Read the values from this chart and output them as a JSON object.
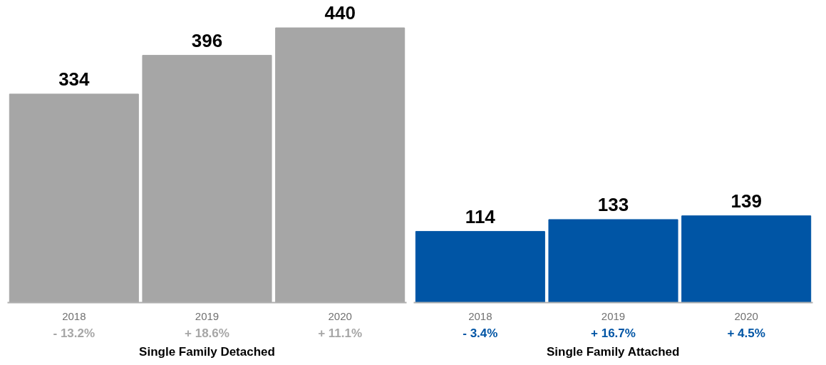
{
  "chart_data": [
    {
      "type": "bar",
      "xlabel": "Single Family Detached",
      "categories": [
        "2018",
        "2019",
        "2020"
      ],
      "values": [
        334,
        396,
        440
      ],
      "color": "#a6a6a6",
      "data_labels": true,
      "tick_labels": "x",
      "grid": false,
      "annotations": [
        "- 13.2%",
        "+ 18.6%",
        "+ 11.1%"
      ]
    },
    {
      "type": "bar",
      "xlabel": "Single Family Attached",
      "categories": [
        "2018",
        "2019",
        "2020"
      ],
      "values": [
        114,
        133,
        139
      ],
      "color": "#0055a5",
      "data_labels": true,
      "tick_labels": "x",
      "grid": false,
      "annotations": [
        "- 3.4%",
        "+ 16.7%",
        "+ 4.5%"
      ]
    }
  ]
}
